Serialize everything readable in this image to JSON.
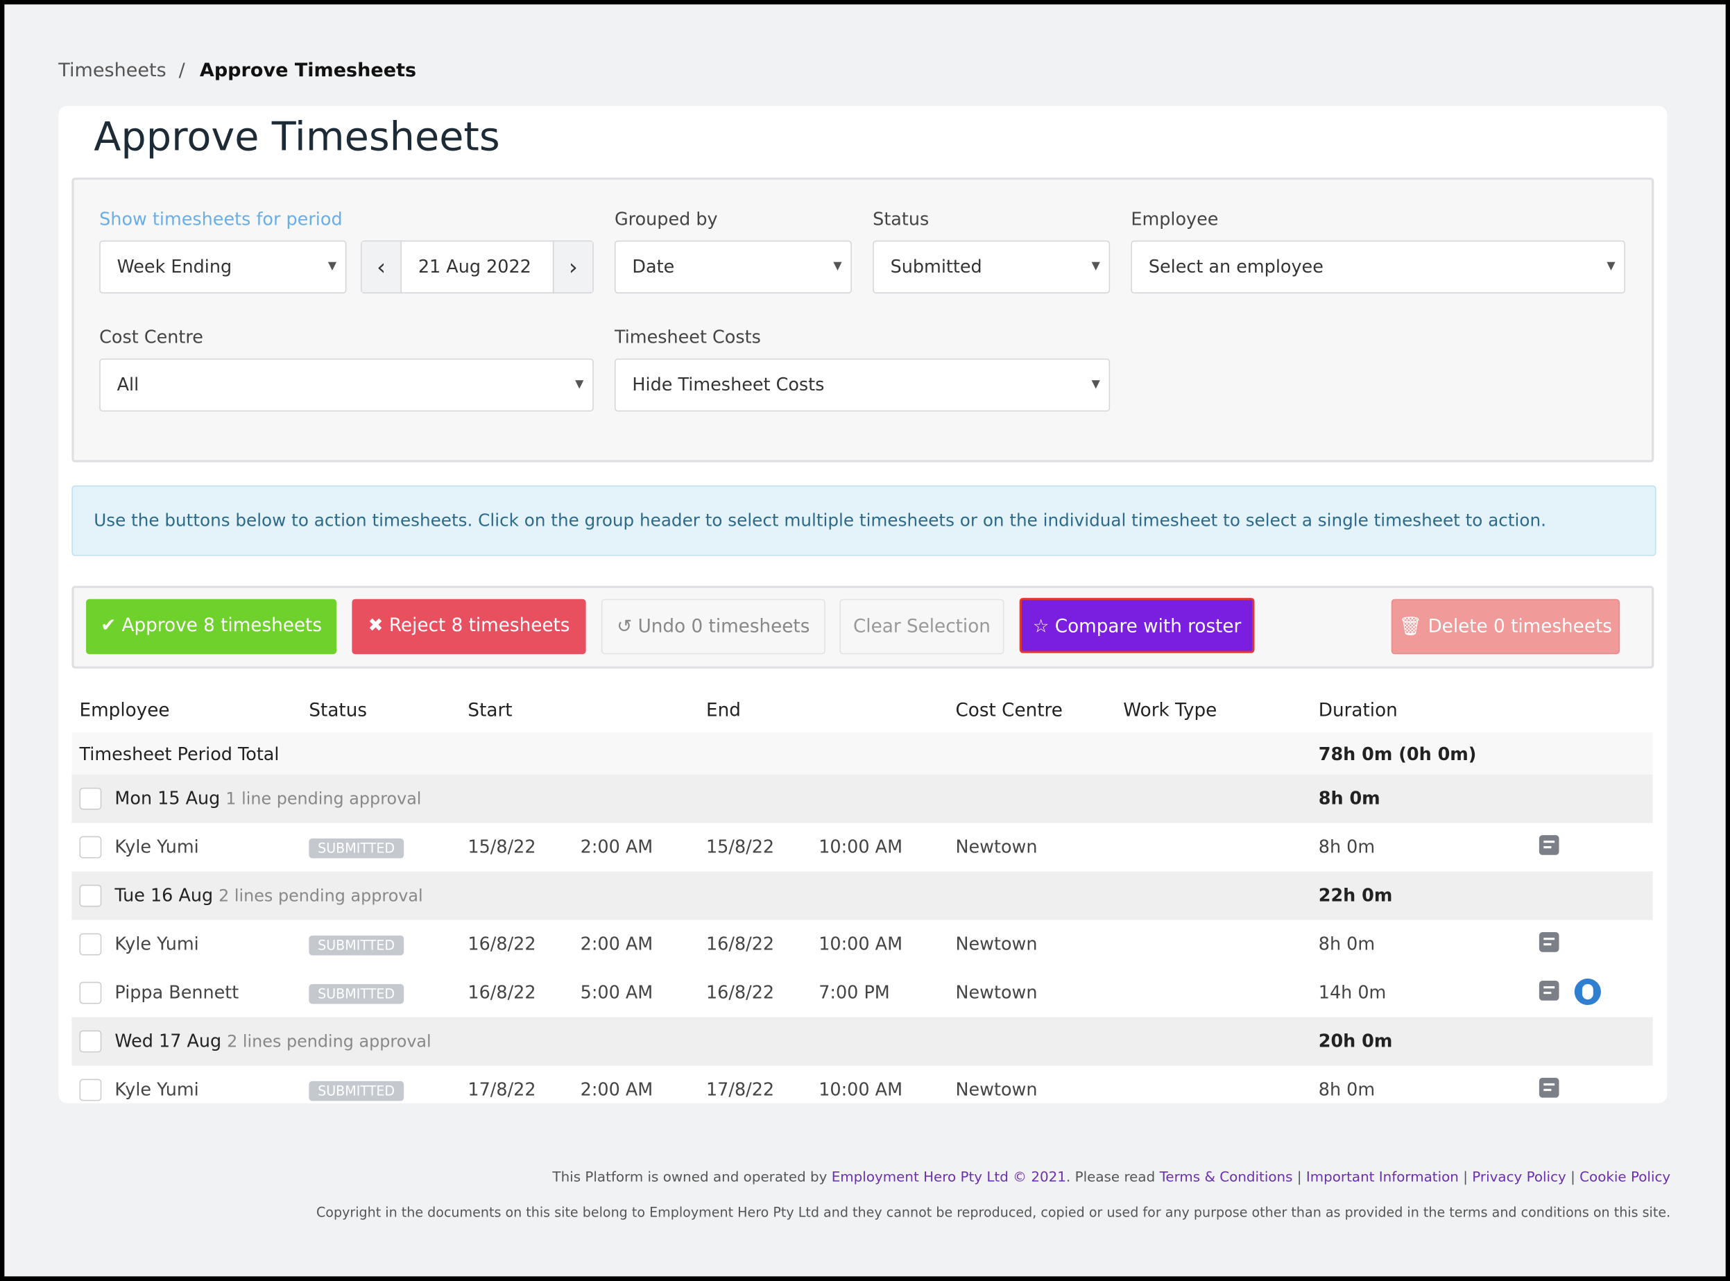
{
  "breadcrumb": {
    "parent": "Timesheets",
    "separator": "/",
    "current": "Approve Timesheets"
  },
  "title": "Approve Timesheets",
  "filters": {
    "period_label": "Show timesheets for period",
    "period_type": "Week Ending",
    "period_date": "21 Aug 2022",
    "grouped_by_label": "Grouped by",
    "grouped_by": "Date",
    "status_label": "Status",
    "status": "Submitted",
    "employee_label": "Employee",
    "employee": "Select an employee",
    "cost_centre_label": "Cost Centre",
    "cost_centre": "All",
    "costs_label": "Timesheet Costs",
    "costs": "Hide Timesheet Costs"
  },
  "info": "Use the buttons below to action timesheets. Click on the group header to select multiple timesheets or on the individual timesheet to select a single timesheet to action.",
  "actions": {
    "approve": "Approve 8 timesheets",
    "reject": "Reject 8 timesheets",
    "undo": "Undo 0 timesheets",
    "clear": "Clear Selection",
    "compare": "Compare with roster",
    "delete": "Delete 0 timesheets"
  },
  "table": {
    "columns": [
      "Employee",
      "Status",
      "Start",
      "End",
      "Cost Centre",
      "Work Type",
      "Duration"
    ],
    "total": {
      "label": "Timesheet Period Total",
      "duration": "78h 0m (0h 0m)"
    },
    "groups": [
      {
        "date": "Mon 15 Aug",
        "pending": "1 line pending approval",
        "duration": "8h 0m",
        "rows": [
          {
            "employee": "Kyle Yumi",
            "status": "SUBMITTED",
            "start_date": "15/8/22",
            "start_time": "2:00 AM",
            "end_date": "15/8/22",
            "end_time": "10:00 AM",
            "cost_centre": "Newtown",
            "duration": "8h 0m"
          }
        ]
      },
      {
        "date": "Tue 16 Aug",
        "pending": "2 lines pending approval",
        "duration": "22h 0m",
        "rows": [
          {
            "employee": "Kyle Yumi",
            "status": "SUBMITTED",
            "start_date": "16/8/22",
            "start_time": "2:00 AM",
            "end_date": "16/8/22",
            "end_time": "10:00 AM",
            "cost_centre": "Newtown",
            "duration": "8h 0m"
          },
          {
            "employee": "Pippa Bennett",
            "status": "SUBMITTED",
            "start_date": "16/8/22",
            "start_time": "5:00 AM",
            "end_date": "16/8/22",
            "end_time": "7:00 PM",
            "cost_centre": "Newtown",
            "duration": "14h 0m"
          }
        ]
      },
      {
        "date": "Wed 17 Aug",
        "pending": "2 lines pending approval",
        "duration": "20h 0m",
        "rows": [
          {
            "employee": "Kyle Yumi",
            "status": "SUBMITTED",
            "start_date": "17/8/22",
            "start_time": "2:00 AM",
            "end_date": "17/8/22",
            "end_time": "10:00 AM",
            "cost_centre": "Newtown",
            "duration": "8h 0m"
          }
        ]
      }
    ]
  },
  "footer": {
    "owned": "This Platform is owned and operated by",
    "company": "Employment Hero Pty Ltd © 2021",
    "read": ". Please read",
    "separator": "|",
    "links": [
      "Terms & Conditions",
      "Important Information",
      "Privacy Policy",
      "Cookie Policy"
    ],
    "copyright": "Copyright in the documents on this site belong to Employment Hero Pty Ltd and they cannot be reproduced, copied or used for any purpose other than as provided in the terms and conditions on this site."
  }
}
